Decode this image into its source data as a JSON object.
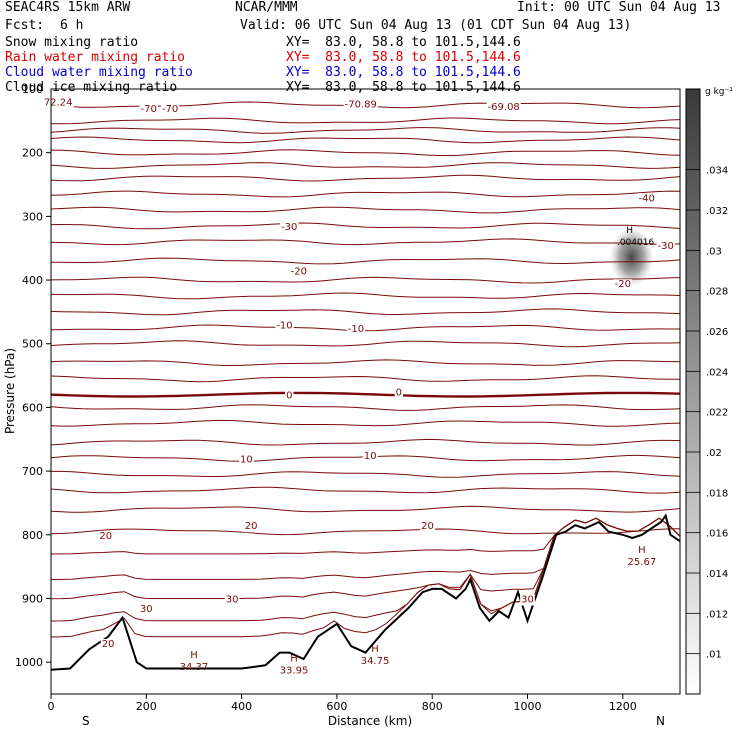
{
  "header": {
    "model": "SEAC4RS 15km ARW",
    "producer": "NCAR/MMM",
    "init": "Init: 00 UTC Sun 04 Aug 13",
    "fcst_label": "Fcst:",
    "fcst_value": "6 h",
    "valid": "Valid: 06 UTC Sun 04 Aug 13 (01 CDT Sun 04 Aug 13)"
  },
  "fields": [
    {
      "name": "Snow mixing ratio",
      "xy": "XY=  83.0, 58.8 to 101.5,144.6",
      "color": "#000000"
    },
    {
      "name": "Rain water mixing ratio",
      "xy": "XY=  83.0, 58.8 to 101.5,144.6",
      "color": "#dd0000"
    },
    {
      "name": "Cloud water mixing ratio",
      "xy": "XY=  83.0, 58.8 to 101.5,144.6",
      "color": "#0000cc"
    },
    {
      "name": "Cloud ice mixing ratio",
      "xy": "XY=  83.0, 58.8 to 101.5,144.6",
      "color": "#000000"
    }
  ],
  "chart_data": {
    "type": "cross-section",
    "xlabel": "Distance (km)",
    "ylabel": "Pressure (hPa)",
    "xlim": [
      0,
      1320
    ],
    "ylim": [
      1050,
      100
    ],
    "x_ticks": [
      0,
      200,
      400,
      600,
      800,
      1000,
      1200
    ],
    "y_ticks": [
      200,
      300,
      400,
      500,
      600,
      700,
      800,
      900,
      1000
    ],
    "y_top_label": "100",
    "endpoint_labels": {
      "left": "S",
      "right": "N"
    },
    "contour_color": "#7a0a0a",
    "contour_levels_p": [
      125,
      150,
      165,
      180,
      200,
      220,
      240,
      265,
      290,
      315,
      340,
      370,
      400,
      425,
      450,
      475,
      500,
      530,
      555,
      600,
      625,
      655,
      680,
      705,
      730,
      760,
      795
    ],
    "zero_line_p": 580,
    "contour_labels": [
      {
        "text": "-70",
        "x": 205,
        "p": 130
      },
      {
        "text": "-70",
        "x": 250,
        "p": 130
      },
      {
        "text": "-70.89",
        "x": 650,
        "p": 123
      },
      {
        "text": "-69.08",
        "x": 950,
        "p": 127
      },
      {
        "text": "72.24",
        "x": 15,
        "p": 120
      },
      {
        "text": "-40",
        "x": 1250,
        "p": 270
      },
      {
        "text": "-30",
        "x": 500,
        "p": 315
      },
      {
        "text": "-30",
        "x": 1290,
        "p": 345
      },
      {
        "text": "-20",
        "x": 520,
        "p": 385
      },
      {
        "text": "-20",
        "x": 1200,
        "p": 405
      },
      {
        "text": "-10",
        "x": 490,
        "p": 470
      },
      {
        "text": "-10",
        "x": 640,
        "p": 475
      },
      {
        "text": "0",
        "x": 500,
        "p": 580
      },
      {
        "text": "0",
        "x": 730,
        "p": 575
      },
      {
        "text": "10",
        "x": 410,
        "p": 680
      },
      {
        "text": "10",
        "x": 670,
        "p": 675
      },
      {
        "text": "20",
        "x": 115,
        "p": 800
      },
      {
        "text": "20",
        "x": 420,
        "p": 785
      },
      {
        "text": "20",
        "x": 790,
        "p": 785
      },
      {
        "text": "20",
        "x": 120,
        "p": 970
      },
      {
        "text": "30",
        "x": 200,
        "p": 915
      },
      {
        "text": "30",
        "x": 380,
        "p": 900
      },
      {
        "text": "30",
        "x": 1000,
        "p": 900
      }
    ],
    "highs": [
      {
        "label": "H",
        "value": "34.37",
        "x": 300,
        "p": 1000
      },
      {
        "label": "H",
        "value": "33.95",
        "x": 510,
        "p": 1005
      },
      {
        "label": "H",
        "value": "34.75",
        "x": 680,
        "p": 990
      },
      {
        "label": "H",
        "value": "25.67",
        "x": 1240,
        "p": 835
      }
    ],
    "snow_max": {
      "label": "H",
      "value": ".004016",
      "x": 1210,
      "p": 345
    },
    "terrain": {
      "distance_km": [
        0,
        40,
        80,
        120,
        150,
        180,
        200,
        250,
        300,
        350,
        400,
        450,
        480,
        500,
        530,
        560,
        600,
        630,
        660,
        700,
        750,
        780,
        800,
        820,
        850,
        870,
        880,
        900,
        920,
        940,
        960,
        980,
        1000,
        1030,
        1060,
        1080,
        1100,
        1120,
        1150,
        1170,
        1200,
        1220,
        1240,
        1260,
        1280,
        1290,
        1300,
        1320
      ],
      "pressure_hpa": [
        1012,
        1010,
        980,
        960,
        930,
        1000,
        1010,
        1010,
        1010,
        1010,
        1010,
        1005,
        985,
        985,
        995,
        960,
        940,
        975,
        985,
        950,
        915,
        890,
        885,
        885,
        900,
        885,
        870,
        915,
        935,
        920,
        930,
        890,
        935,
        870,
        800,
        795,
        785,
        790,
        780,
        795,
        800,
        805,
        800,
        790,
        780,
        770,
        800,
        810
      ]
    },
    "colorbar": {
      "unit": "g kg⁻¹",
      "min": 0.008,
      "max": 0.038,
      "labels": [
        ".01",
        ".012",
        ".014",
        ".016",
        ".018",
        ".02",
        ".022",
        ".024",
        ".026",
        ".028",
        ".03",
        ".032",
        ".034"
      ],
      "color_low": "#ffffff",
      "color_high": "#3a3a3a"
    }
  }
}
